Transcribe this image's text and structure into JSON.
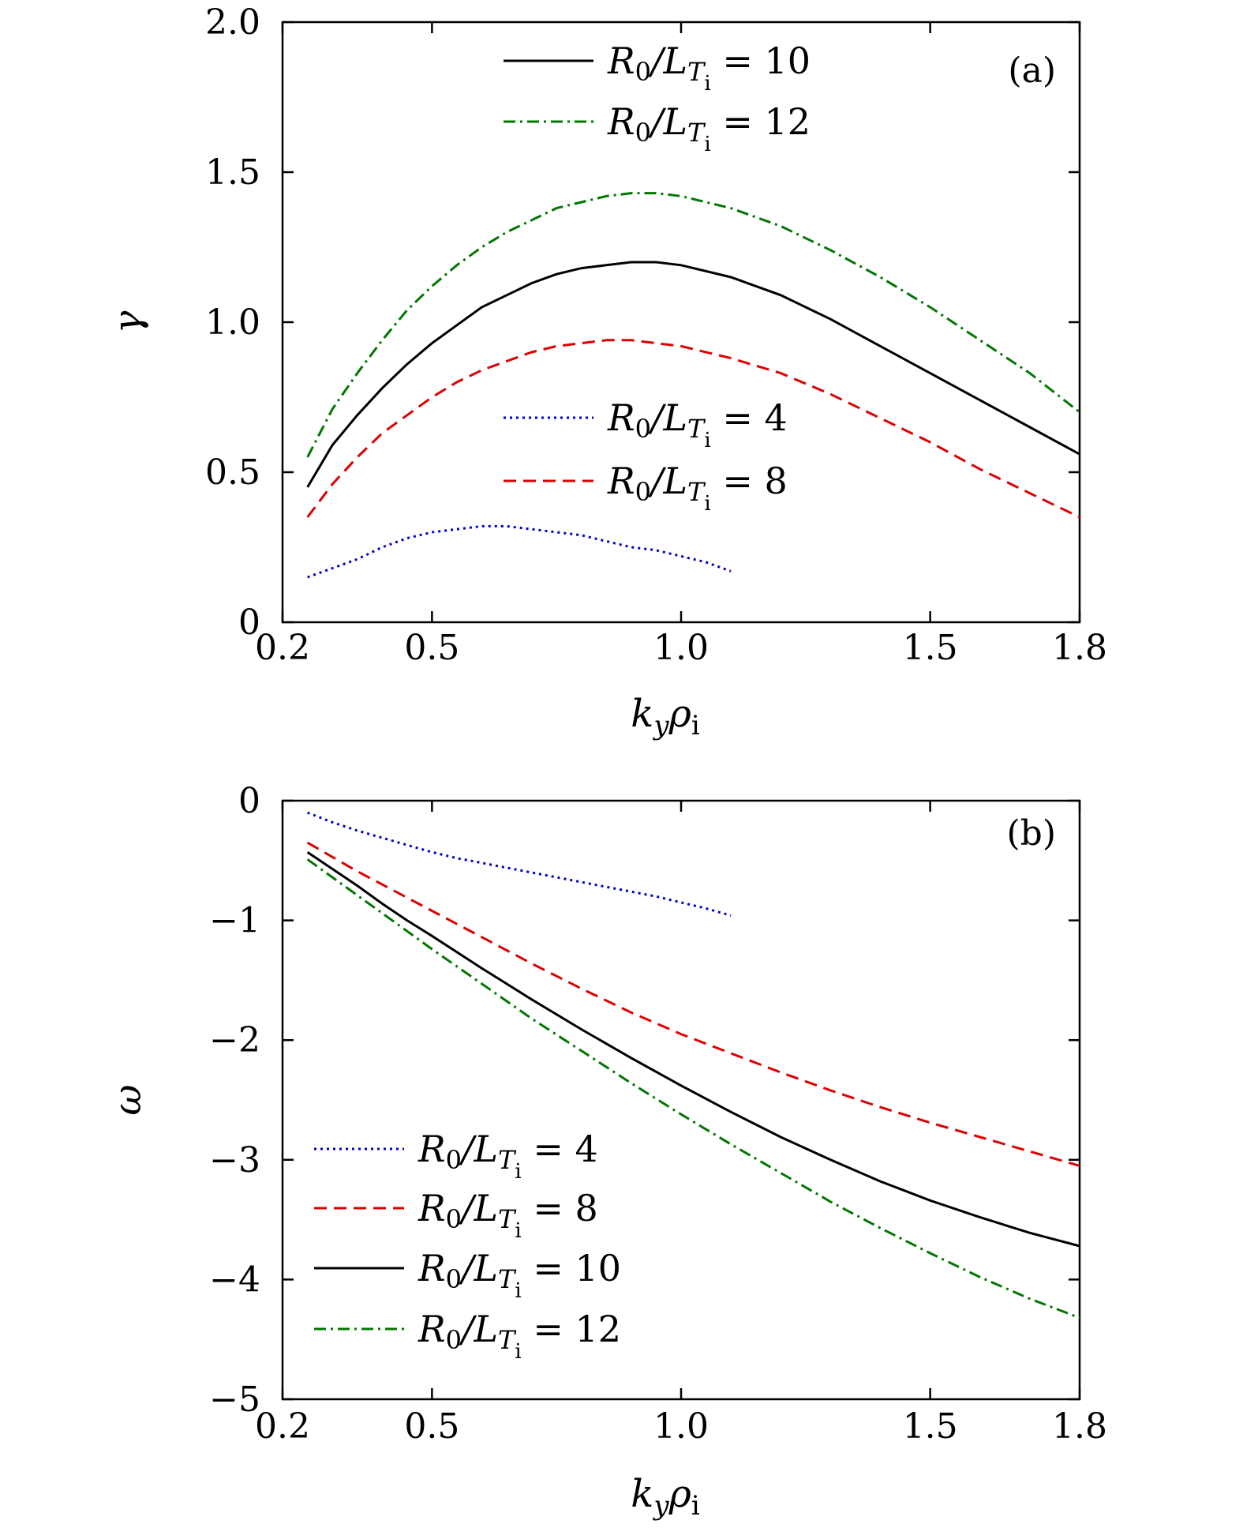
{
  "chart_data": [
    {
      "panel": "(a)",
      "type": "line",
      "xlabel": "k_y ρ_i",
      "ylabel": "γ",
      "xlim": [
        0.2,
        1.8
      ],
      "ylim": [
        0,
        2.0
      ],
      "xticks": [
        0.2,
        0.5,
        1.0,
        1.5,
        1.8
      ],
      "xtick_labels": [
        "0.2",
        "0.5",
        "1.0",
        "1.5",
        "1.8"
      ],
      "yticks": [
        0,
        0.5,
        1.0,
        1.5,
        2.0
      ],
      "ytick_labels": [
        "0",
        "0.5",
        "1.0",
        "1.5",
        "2.0"
      ],
      "grid": false,
      "legend_entries": [
        {
          "series": 2,
          "label": "R0/LTi = 10",
          "base": "R",
          "sub1": "0",
          "mid": "/L",
          "sub2": "T",
          "sub3": "i",
          "value": "= 10"
        },
        {
          "series": 3,
          "label": "R0/LTi = 12",
          "base": "R",
          "sub1": "0",
          "mid": "/L",
          "sub2": "T",
          "sub3": "i",
          "value": "= 12"
        },
        {
          "series": 0,
          "label": "R0/LTi = 4",
          "base": "R",
          "sub1": "0",
          "mid": "/L",
          "sub2": "T",
          "sub3": "i",
          "value": "= 4"
        },
        {
          "series": 1,
          "label": "R0/LTi = 8",
          "base": "R",
          "sub1": "0",
          "mid": "/L",
          "sub2": "T",
          "sub3": "i",
          "value": "= 8"
        }
      ],
      "series": [
        {
          "name": "R0/LTi = 4",
          "color": "#0000cc",
          "dash": "dotted",
          "x": [
            0.25,
            0.3,
            0.35,
            0.4,
            0.45,
            0.5,
            0.55,
            0.6,
            0.65,
            0.7,
            0.75,
            0.8,
            0.85,
            0.9,
            0.95,
            1.0,
            1.05,
            1.1
          ],
          "y": [
            0.15,
            0.18,
            0.21,
            0.25,
            0.28,
            0.3,
            0.31,
            0.32,
            0.32,
            0.31,
            0.3,
            0.29,
            0.27,
            0.25,
            0.24,
            0.22,
            0.2,
            0.17
          ]
        },
        {
          "name": "R0/LTi = 8",
          "color": "#dd0000",
          "dash": "dashed",
          "x": [
            0.25,
            0.3,
            0.35,
            0.4,
            0.45,
            0.5,
            0.55,
            0.6,
            0.65,
            0.7,
            0.75,
            0.8,
            0.85,
            0.9,
            0.95,
            1.0,
            1.1,
            1.2,
            1.3,
            1.4,
            1.5,
            1.6,
            1.7,
            1.8
          ],
          "y": [
            0.35,
            0.46,
            0.55,
            0.63,
            0.69,
            0.75,
            0.8,
            0.84,
            0.87,
            0.9,
            0.92,
            0.93,
            0.94,
            0.94,
            0.93,
            0.92,
            0.88,
            0.83,
            0.76,
            0.68,
            0.6,
            0.51,
            0.43,
            0.35
          ]
        },
        {
          "name": "R0/LTi = 10",
          "color": "#000000",
          "dash": "solid",
          "x": [
            0.25,
            0.3,
            0.35,
            0.4,
            0.45,
            0.5,
            0.55,
            0.6,
            0.65,
            0.7,
            0.75,
            0.8,
            0.85,
            0.9,
            0.95,
            1.0,
            1.1,
            1.2,
            1.3,
            1.4,
            1.5,
            1.6,
            1.7,
            1.8
          ],
          "y": [
            0.45,
            0.59,
            0.69,
            0.78,
            0.86,
            0.93,
            0.99,
            1.05,
            1.09,
            1.13,
            1.16,
            1.18,
            1.19,
            1.2,
            1.2,
            1.19,
            1.15,
            1.09,
            1.01,
            0.92,
            0.83,
            0.74,
            0.65,
            0.56
          ]
        },
        {
          "name": "R0/LTi = 12",
          "color": "#007700",
          "dash": "dashdot",
          "x": [
            0.25,
            0.3,
            0.35,
            0.4,
            0.45,
            0.5,
            0.55,
            0.6,
            0.65,
            0.7,
            0.75,
            0.8,
            0.85,
            0.9,
            0.95,
            1.0,
            1.1,
            1.2,
            1.3,
            1.4,
            1.5,
            1.6,
            1.7,
            1.8
          ],
          "y": [
            0.55,
            0.71,
            0.83,
            0.94,
            1.04,
            1.12,
            1.19,
            1.25,
            1.3,
            1.34,
            1.38,
            1.4,
            1.42,
            1.43,
            1.43,
            1.42,
            1.38,
            1.32,
            1.24,
            1.15,
            1.05,
            0.94,
            0.83,
            0.7
          ]
        }
      ]
    },
    {
      "panel": "(b)",
      "type": "line",
      "xlabel": "k_y ρ_i",
      "ylabel": "ω",
      "xlim": [
        0.2,
        1.8
      ],
      "ylim": [
        -5,
        0
      ],
      "xticks": [
        0.2,
        0.5,
        1.0,
        1.5,
        1.8
      ],
      "xtick_labels": [
        "0.2",
        "0.5",
        "1.0",
        "1.5",
        "1.8"
      ],
      "yticks": [
        0,
        -1,
        -2,
        -3,
        -4,
        -5
      ],
      "ytick_labels": [
        "0",
        "−1",
        "−2",
        "−3",
        "−4",
        "−5"
      ],
      "grid": false,
      "legend_entries": [
        {
          "series": 0,
          "label": "R0/LTi = 4",
          "base": "R",
          "sub1": "0",
          "mid": "/L",
          "sub2": "T",
          "sub3": "i",
          "value": "= 4"
        },
        {
          "series": 1,
          "label": "R0/LTi = 8",
          "base": "R",
          "sub1": "0",
          "mid": "/L",
          "sub2": "T",
          "sub3": "i",
          "value": "= 8"
        },
        {
          "series": 2,
          "label": "R0/LTi = 10",
          "base": "R",
          "sub1": "0",
          "mid": "/L",
          "sub2": "T",
          "sub3": "i",
          "value": "= 10"
        },
        {
          "series": 3,
          "label": "R0/LTi = 12",
          "base": "R",
          "sub1": "0",
          "mid": "/L",
          "sub2": "T",
          "sub3": "i",
          "value": "= 12"
        }
      ],
      "series": [
        {
          "name": "R0/LTi = 4",
          "color": "#0000cc",
          "dash": "dotted",
          "x": [
            0.25,
            0.3,
            0.35,
            0.4,
            0.45,
            0.5,
            0.55,
            0.6,
            0.65,
            0.7,
            0.75,
            0.8,
            0.85,
            0.9,
            0.95,
            1.0,
            1.05,
            1.1
          ],
          "y": [
            -0.1,
            -0.18,
            -0.25,
            -0.31,
            -0.37,
            -0.43,
            -0.48,
            -0.52,
            -0.56,
            -0.6,
            -0.64,
            -0.68,
            -0.72,
            -0.76,
            -0.8,
            -0.85,
            -0.9,
            -0.96
          ]
        },
        {
          "name": "R0/LTi = 8",
          "color": "#dd0000",
          "dash": "dashed",
          "x": [
            0.25,
            0.3,
            0.35,
            0.4,
            0.45,
            0.5,
            0.6,
            0.7,
            0.8,
            0.9,
            1.0,
            1.1,
            1.2,
            1.3,
            1.4,
            1.5,
            1.6,
            1.7,
            1.8
          ],
          "y": [
            -0.35,
            -0.47,
            -0.59,
            -0.7,
            -0.81,
            -0.92,
            -1.14,
            -1.36,
            -1.57,
            -1.77,
            -1.95,
            -2.11,
            -2.27,
            -2.42,
            -2.56,
            -2.69,
            -2.81,
            -2.93,
            -3.05
          ]
        },
        {
          "name": "R0/LTi = 10",
          "color": "#000000",
          "dash": "solid",
          "x": [
            0.25,
            0.3,
            0.35,
            0.4,
            0.45,
            0.5,
            0.6,
            0.7,
            0.8,
            0.9,
            1.0,
            1.1,
            1.2,
            1.3,
            1.4,
            1.5,
            1.6,
            1.7,
            1.8
          ],
          "y": [
            -0.43,
            -0.57,
            -0.71,
            -0.86,
            -1.0,
            -1.13,
            -1.4,
            -1.66,
            -1.91,
            -2.15,
            -2.38,
            -2.6,
            -2.81,
            -3.0,
            -3.18,
            -3.34,
            -3.48,
            -3.61,
            -3.72
          ]
        },
        {
          "name": "R0/LTi = 12",
          "color": "#007700",
          "dash": "dashdot",
          "x": [
            0.25,
            0.3,
            0.35,
            0.4,
            0.45,
            0.5,
            0.6,
            0.7,
            0.8,
            0.9,
            1.0,
            1.1,
            1.2,
            1.3,
            1.4,
            1.5,
            1.6,
            1.7,
            1.8
          ],
          "y": [
            -0.49,
            -0.64,
            -0.79,
            -0.94,
            -1.09,
            -1.24,
            -1.53,
            -1.82,
            -2.09,
            -2.36,
            -2.62,
            -2.87,
            -3.11,
            -3.35,
            -3.57,
            -3.78,
            -3.98,
            -4.16,
            -4.32
          ]
        }
      ]
    }
  ]
}
